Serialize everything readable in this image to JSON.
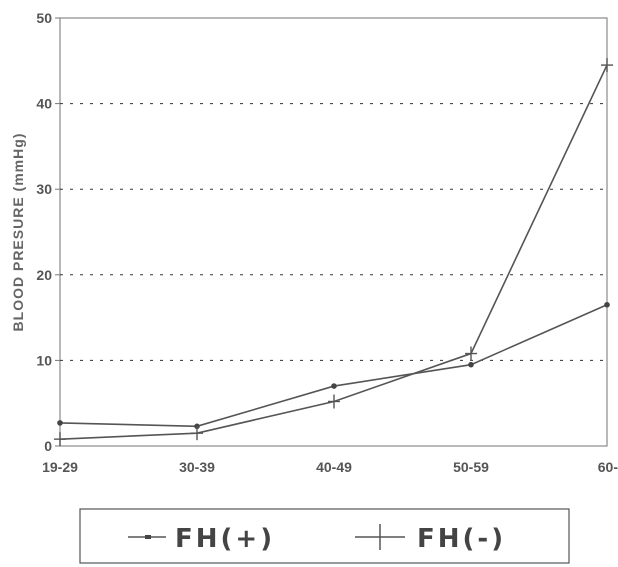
{
  "chart_data": {
    "type": "line",
    "ylabel": "BLOOD PRESURE (mmHg)",
    "xlabel": "",
    "categories": [
      "19-29",
      "30-39",
      "40-49",
      "50-59",
      "60-"
    ],
    "ylim": [
      0,
      50
    ],
    "yticks": [
      "0",
      "10",
      "20",
      "30",
      "40",
      "50"
    ],
    "grid": "horizontal-dotted",
    "legend_position": "bottom",
    "series": [
      {
        "name": "FH(+)",
        "marker": "dot",
        "values": [
          2.7,
          2.3,
          7.0,
          9.5,
          16.5
        ]
      },
      {
        "name": "FH(-)",
        "marker": "plus",
        "values": [
          0.8,
          1.5,
          5.2,
          10.8,
          44.5
        ]
      }
    ],
    "colors": {
      "line": "#555555",
      "grid": "#333333",
      "axis": "#777777"
    }
  }
}
